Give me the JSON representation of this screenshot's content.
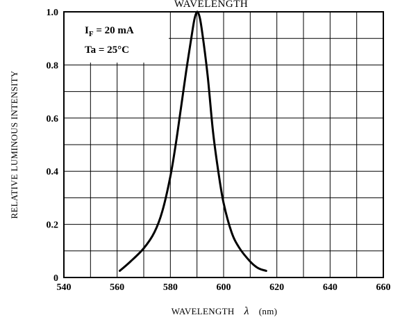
{
  "chart_data": {
    "type": "line",
    "title": "WAVELENGTH",
    "xlabel": "WAVELENGTH",
    "xlabel_symbol": "λ",
    "xlabel_unit": "(nm)",
    "ylabel": "RELATIVE LUMINOUS INTENSITY",
    "xlim": [
      540,
      660
    ],
    "ylim": [
      0,
      1.0
    ],
    "x_ticks": [
      540,
      560,
      580,
      600,
      620,
      640,
      660
    ],
    "x_tick_labels": [
      "540",
      "560",
      "580",
      "600",
      "620",
      "640",
      "660"
    ],
    "y_ticks": [
      0,
      0.2,
      0.4,
      0.6,
      0.8,
      1.0
    ],
    "y_tick_labels": [
      "0",
      "0.2",
      "0.4",
      "0.6",
      "0.8",
      "1.0"
    ],
    "grid": true,
    "annotations": {
      "current": {
        "symbol": "I",
        "subscript": "F",
        "value": " = 20 mA"
      },
      "temperature": "Ta = 25°C"
    },
    "series": [
      {
        "x": [
          561,
          565,
          570,
          574,
          577,
          580,
          582,
          584,
          586,
          588,
          589,
          590,
          591,
          592,
          594,
          596,
          598,
          600,
          603,
          606,
          610,
          613,
          616
        ],
        "y": [
          0.025,
          0.06,
          0.11,
          0.17,
          0.25,
          0.38,
          0.5,
          0.64,
          0.78,
          0.91,
          0.97,
          1.0,
          0.98,
          0.92,
          0.76,
          0.55,
          0.4,
          0.28,
          0.17,
          0.11,
          0.06,
          0.035,
          0.025
        ]
      }
    ]
  }
}
